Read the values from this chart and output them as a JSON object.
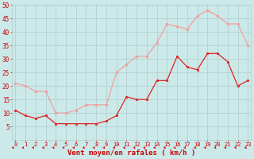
{
  "x": [
    0,
    1,
    2,
    3,
    4,
    5,
    6,
    7,
    8,
    9,
    10,
    11,
    12,
    13,
    14,
    15,
    16,
    17,
    18,
    19,
    20,
    21,
    22,
    23
  ],
  "wind_avg": [
    11,
    9,
    8,
    9,
    6,
    6,
    6,
    6,
    6,
    7,
    9,
    16,
    15,
    15,
    22,
    22,
    31,
    27,
    26,
    32,
    32,
    29,
    20,
    22
  ],
  "wind_gust": [
    21,
    20,
    18,
    18,
    10,
    10,
    11,
    13,
    13,
    13,
    25,
    28,
    31,
    31,
    36,
    43,
    42,
    41,
    46,
    48,
    46,
    43,
    43,
    35
  ],
  "bg_color": "#cce9e9",
  "grid_color": "#b0cccc",
  "avg_color": "#dd2222",
  "gust_color": "#f0a0a0",
  "xlabel": "Vent moyen/en rafales ( km/h )",
  "xlabel_color": "#cc0000",
  "tick_color": "#cc0000",
  "ylim": [
    0,
    50
  ],
  "yticks": [
    5,
    10,
    15,
    20,
    25,
    30,
    35,
    40,
    45,
    50
  ]
}
